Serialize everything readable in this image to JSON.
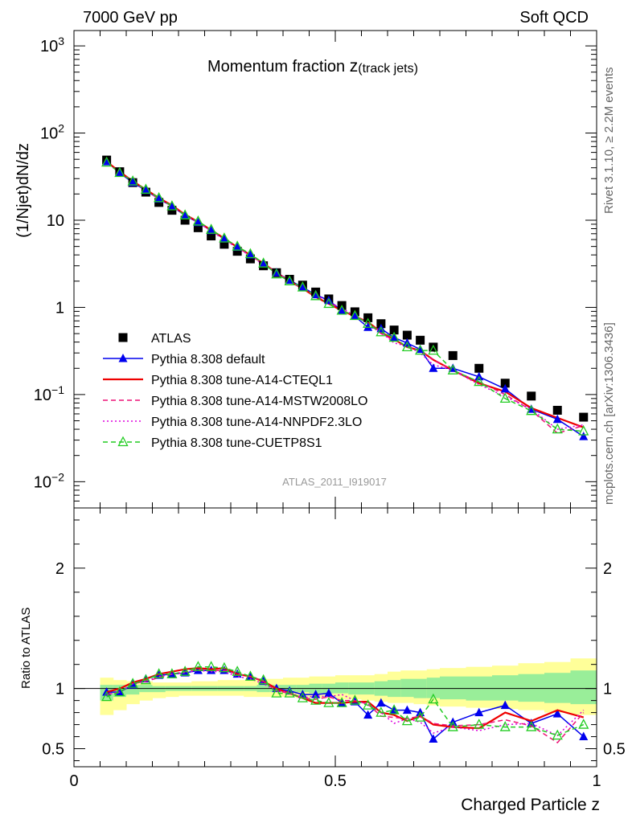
{
  "header": {
    "left": "7000 GeV pp",
    "right": "Soft QCD"
  },
  "side_text": {
    "rivet": "Rivet 3.1.10, ≥ 2.2M events",
    "source": "mcplots.cern.ch [arXiv:1306.3436]"
  },
  "chart_data": [
    {
      "panel": "main",
      "type": "scatter",
      "title_main": "Momentum fraction ",
      "title_z": "z",
      "title_sub": "(track jets)",
      "ylabel": "(1/Njet)dN/dz",
      "watermark": "ATLAS_2011_I919017",
      "yscale": "log",
      "ylim": [
        0.005,
        1500
      ],
      "xlim": [
        0,
        1
      ],
      "yticks": [
        {
          "v": 1000,
          "base": "10",
          "exp": "3"
        },
        {
          "v": 100,
          "base": "10",
          "exp": "2"
        },
        {
          "v": 10,
          "base": "10",
          "exp": ""
        },
        {
          "v": 1,
          "base": "1",
          "exp": ""
        },
        {
          "v": 0.1,
          "base": "10",
          "exp": "−1"
        },
        {
          "v": 0.01,
          "base": "10",
          "exp": "−2"
        }
      ],
      "x": [
        0.0625,
        0.0875,
        0.1125,
        0.1375,
        0.1625,
        0.1875,
        0.2125,
        0.2375,
        0.2625,
        0.2875,
        0.3125,
        0.3375,
        0.3625,
        0.3875,
        0.4125,
        0.4375,
        0.4625,
        0.4875,
        0.5125,
        0.5375,
        0.5625,
        0.5875,
        0.6125,
        0.6375,
        0.6625,
        0.6875,
        0.725,
        0.775,
        0.825,
        0.875,
        0.925,
        0.975
      ],
      "series": [
        {
          "name": "ATLAS",
          "color": "#000000",
          "marker": "square",
          "line": "none",
          "values": [
            49,
            36,
            27,
            21,
            16,
            13,
            10,
            8.2,
            6.6,
            5.3,
            4.4,
            3.6,
            3.0,
            2.5,
            2.1,
            1.8,
            1.5,
            1.25,
            1.05,
            0.89,
            0.76,
            0.65,
            0.55,
            0.48,
            0.42,
            0.35,
            0.28,
            0.2,
            0.135,
            0.096,
            0.066,
            0.055
          ]
        },
        {
          "name": "Pythia 8.308 default",
          "color": "#0000ee",
          "marker": "triangle",
          "line": "solid",
          "values": [
            47,
            35,
            27,
            22,
            17.5,
            14.5,
            11.3,
            9.4,
            7.6,
            6.1,
            4.9,
            4.0,
            3.2,
            2.5,
            2.05,
            1.7,
            1.4,
            1.2,
            0.92,
            0.79,
            0.59,
            0.57,
            0.45,
            0.39,
            0.33,
            0.2,
            0.2,
            0.16,
            0.116,
            0.068,
            0.052,
            0.033
          ]
        },
        {
          "name": "Pythia 8.308 tune-A14-CTEQL1",
          "color": "#ee0000",
          "marker": "none",
          "line": "solid",
          "values": [
            47,
            36,
            28,
            22.5,
            18,
            14.8,
            11.6,
            9.6,
            7.7,
            6.2,
            4.9,
            4.0,
            3.2,
            2.5,
            2.0,
            1.65,
            1.32,
            1.1,
            0.92,
            0.79,
            0.68,
            0.52,
            0.43,
            0.35,
            0.32,
            0.25,
            0.19,
            0.135,
            0.108,
            0.07,
            0.054,
            0.042
          ]
        },
        {
          "name": "Pythia 8.308 tune-A14-MSTW2008LO",
          "color": "#ee1177",
          "marker": "none",
          "line": "dashed",
          "values": [
            46,
            35,
            28,
            22,
            17.5,
            14.5,
            11.4,
            9.5,
            7.6,
            6.1,
            4.9,
            4.0,
            3.2,
            2.5,
            2.0,
            1.65,
            1.35,
            1.15,
            0.93,
            0.8,
            0.66,
            0.5,
            0.42,
            0.36,
            0.32,
            0.25,
            0.19,
            0.14,
            0.1,
            0.066,
            0.036,
            0.044
          ]
        },
        {
          "name": "Pythia 8.308 tune-A14-NNPDF2.3LO",
          "color": "#dd00dd",
          "marker": "none",
          "line": "dotted",
          "values": [
            46,
            35,
            28,
            22,
            17.5,
            14.5,
            11.3,
            9.4,
            7.5,
            6.0,
            4.8,
            3.9,
            3.1,
            2.5,
            2.0,
            1.65,
            1.4,
            1.15,
            0.98,
            0.8,
            0.66,
            0.52,
            0.39,
            0.36,
            0.3,
            0.22,
            0.19,
            0.13,
            0.095,
            0.068,
            0.04,
            0.045
          ]
        },
        {
          "name": "Pythia 8.308 tune-CUETP8S1",
          "color": "#22cc22",
          "marker": "open-triangle",
          "line": "dashed",
          "values": [
            46,
            35,
            28,
            22.5,
            18,
            14.5,
            11.4,
            9.7,
            7.8,
            6.2,
            5.0,
            4.1,
            3.2,
            2.4,
            2.0,
            1.7,
            1.35,
            1.1,
            0.92,
            0.8,
            0.65,
            0.52,
            0.45,
            0.35,
            0.32,
            0.32,
            0.19,
            0.14,
            0.09,
            0.065,
            0.04,
            0.038
          ]
        }
      ]
    },
    {
      "panel": "ratio",
      "type": "line",
      "ylabel": "Ratio to ATLAS",
      "xlabel": "Charged Particle z",
      "xlim": [
        0,
        1
      ],
      "ylim": [
        0.35,
        2.5
      ],
      "yticks": [
        {
          "v": 2,
          "label": "2"
        },
        {
          "v": 1,
          "label": "1"
        },
        {
          "v": 0.5,
          "label": "0.5"
        }
      ],
      "xticks": [
        {
          "v": 0,
          "label": "0"
        },
        {
          "v": 0.5,
          "label": "0.5"
        },
        {
          "v": 1,
          "label": "1"
        }
      ],
      "x": [
        0.0625,
        0.0875,
        0.1125,
        0.1375,
        0.1625,
        0.1875,
        0.2125,
        0.2375,
        0.2625,
        0.2875,
        0.3125,
        0.3375,
        0.3625,
        0.3875,
        0.4125,
        0.4375,
        0.4625,
        0.4875,
        0.5125,
        0.5375,
        0.5625,
        0.5875,
        0.6125,
        0.6375,
        0.6625,
        0.6875,
        0.725,
        0.775,
        0.825,
        0.875,
        0.925,
        0.975
      ],
      "band_edges": [
        0.05,
        0.075,
        0.1,
        0.125,
        0.15,
        0.175,
        0.2,
        0.225,
        0.25,
        0.275,
        0.3,
        0.325,
        0.35,
        0.375,
        0.4,
        0.425,
        0.45,
        0.475,
        0.5,
        0.525,
        0.55,
        0.575,
        0.6,
        0.625,
        0.65,
        0.675,
        0.7,
        0.75,
        0.8,
        0.85,
        0.9,
        0.95,
        1.0
      ],
      "band_outer_hi": [
        1.09,
        1.07,
        1.06,
        1.06,
        1.05,
        1.05,
        1.05,
        1.06,
        1.06,
        1.07,
        1.07,
        1.07,
        1.08,
        1.08,
        1.09,
        1.09,
        1.1,
        1.1,
        1.11,
        1.11,
        1.11,
        1.12,
        1.14,
        1.15,
        1.15,
        1.16,
        1.17,
        1.18,
        1.19,
        1.21,
        1.22,
        1.25
      ],
      "band_outer_lo": [
        0.78,
        0.82,
        0.87,
        0.9,
        0.92,
        0.93,
        0.94,
        0.94,
        0.94,
        0.94,
        0.94,
        0.93,
        0.93,
        0.93,
        0.93,
        0.92,
        0.92,
        0.92,
        0.91,
        0.91,
        0.9,
        0.89,
        0.88,
        0.88,
        0.87,
        0.86,
        0.85,
        0.84,
        0.83,
        0.82,
        0.8,
        0.78
      ],
      "band_inner_hi": [
        1.03,
        1.03,
        1.03,
        1.03,
        1.02,
        1.02,
        1.02,
        1.02,
        1.02,
        1.02,
        1.02,
        1.02,
        1.03,
        1.03,
        1.03,
        1.03,
        1.04,
        1.04,
        1.05,
        1.05,
        1.05,
        1.06,
        1.07,
        1.08,
        1.08,
        1.09,
        1.1,
        1.1,
        1.11,
        1.12,
        1.13,
        1.15
      ],
      "band_inner_lo": [
        0.9,
        0.93,
        0.95,
        0.97,
        0.97,
        0.98,
        0.98,
        0.98,
        0.98,
        0.98,
        0.98,
        0.98,
        0.97,
        0.97,
        0.97,
        0.97,
        0.96,
        0.96,
        0.96,
        0.95,
        0.95,
        0.94,
        0.93,
        0.93,
        0.92,
        0.92,
        0.91,
        0.9,
        0.9,
        0.89,
        0.88,
        0.87
      ],
      "series": [
        {
          "name": "Pythia 8.308 default",
          "color": "#0000ee",
          "marker": "triangle",
          "line": "solid",
          "values": [
            0.97,
            0.97,
            1.03,
            1.08,
            1.11,
            1.12,
            1.13,
            1.15,
            1.15,
            1.15,
            1.12,
            1.1,
            1.06,
            1.0,
            0.98,
            0.95,
            0.95,
            0.96,
            0.88,
            0.89,
            0.78,
            0.88,
            0.82,
            0.82,
            0.8,
            0.58,
            0.72,
            0.8,
            0.86,
            0.71,
            0.79,
            0.6
          ]
        },
        {
          "name": "Pythia 8.308 tune-A14-CTEQL1",
          "color": "#ee0000",
          "marker": "none",
          "line": "solid",
          "values": [
            0.97,
            1.0,
            1.05,
            1.08,
            1.12,
            1.14,
            1.16,
            1.17,
            1.16,
            1.17,
            1.12,
            1.1,
            1.06,
            1.0,
            0.96,
            0.92,
            0.88,
            0.88,
            0.88,
            0.89,
            0.89,
            0.8,
            0.78,
            0.73,
            0.77,
            0.7,
            0.68,
            0.67,
            0.8,
            0.73,
            0.82,
            0.76
          ]
        },
        {
          "name": "Pythia 8.308 tune-A14-MSTW2008LO",
          "color": "#ee1177",
          "marker": "none",
          "line": "dashed",
          "values": [
            0.95,
            0.97,
            1.04,
            1.06,
            1.09,
            1.12,
            1.14,
            1.16,
            1.15,
            1.15,
            1.12,
            1.1,
            1.06,
            0.98,
            0.96,
            0.92,
            0.91,
            0.93,
            0.9,
            0.9,
            0.87,
            0.77,
            0.76,
            0.75,
            0.77,
            0.71,
            0.69,
            0.7,
            0.74,
            0.69,
            0.55,
            0.8
          ]
        },
        {
          "name": "Pythia 8.308 tune-A14-NNPDF2.3LO",
          "color": "#dd00dd",
          "marker": "none",
          "line": "dotted",
          "values": [
            0.95,
            0.97,
            1.04,
            1.06,
            1.1,
            1.12,
            1.13,
            1.15,
            1.14,
            1.14,
            1.1,
            1.08,
            1.04,
            0.98,
            0.97,
            0.92,
            0.94,
            0.93,
            0.95,
            0.9,
            0.87,
            0.8,
            0.71,
            0.75,
            0.72,
            0.63,
            0.68,
            0.65,
            0.7,
            0.71,
            0.61,
            0.82
          ]
        },
        {
          "name": "Pythia 8.308 tune-CUETP8S1",
          "color": "#22cc22",
          "marker": "open-triangle",
          "line": "dashed",
          "values": [
            0.93,
            0.97,
            1.04,
            1.07,
            1.12,
            1.12,
            1.14,
            1.18,
            1.18,
            1.17,
            1.14,
            1.1,
            1.07,
            0.96,
            0.96,
            0.92,
            0.9,
            0.88,
            0.88,
            0.9,
            0.86,
            0.8,
            0.82,
            0.73,
            0.76,
            0.91,
            0.68,
            0.7,
            0.68,
            0.68,
            0.61,
            0.7
          ]
        }
      ]
    }
  ]
}
